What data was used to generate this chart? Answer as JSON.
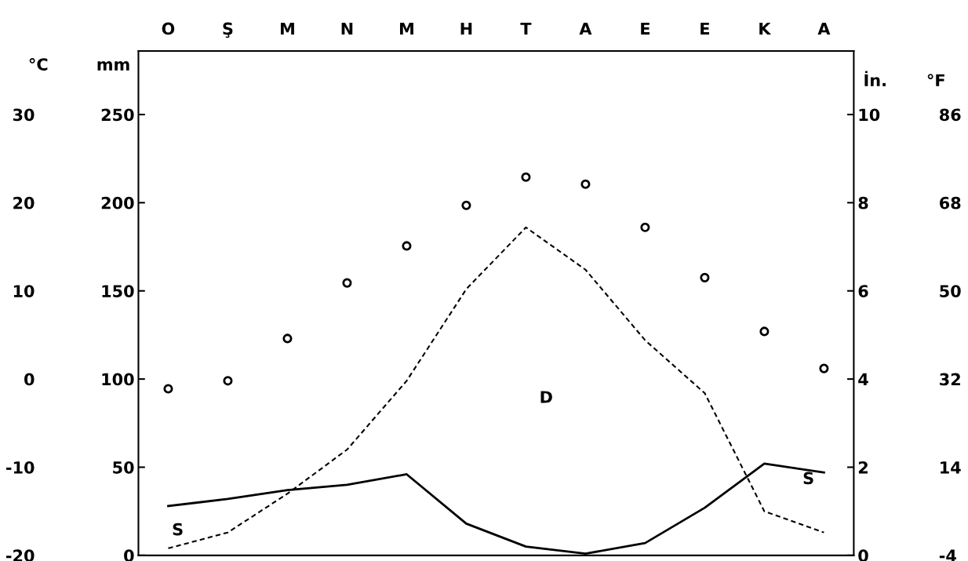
{
  "chart_data": [
    {
      "type": "scatter",
      "marker": "circle",
      "categories": [
        "O",
        "Ş",
        "M",
        "N",
        "M",
        "H",
        "T",
        "A",
        "E",
        "E",
        "K",
        "A"
      ],
      "series": [
        {
          "color": "#000000",
          "values": [
            -1.1,
            -0.2,
            4.6,
            10.9,
            15.1,
            19.7,
            22.9,
            22.1,
            17.2,
            11.5,
            5.4,
            1.2
          ]
        }
      ],
      "ylabel": "°C",
      "ylim": [
        -20,
        37.2
      ],
      "yticks": [
        -20,
        -10,
        0,
        10,
        20,
        30
      ],
      "y2label": "°F",
      "y2lim": [
        -4,
        98.96
      ],
      "y2ticks": [
        -4,
        14,
        32,
        50,
        68,
        86
      ],
      "grid": false,
      "legend": false
    },
    {
      "type": "line",
      "categories": [
        null,
        null,
        null,
        null,
        null,
        null,
        null,
        null,
        null,
        null,
        null,
        null
      ],
      "series": [
        {
          "type": "line",
          "color": "#000000",
          "line_style": "solid",
          "values": [
            28,
            32,
            37,
            40,
            46,
            18,
            5,
            1,
            7,
            27,
            52,
            47
          ]
        },
        {
          "type": "line",
          "color": "#000000",
          "line_style": "dashed",
          "values": [
            4,
            13,
            35,
            60,
            99,
            151,
            186,
            162,
            122,
            92,
            25,
            13
          ]
        }
      ],
      "ylabel": "mm",
      "ylim": [
        0,
        286
      ],
      "yticks": [
        0,
        50,
        100,
        150,
        200,
        250
      ],
      "y2label": "İn.",
      "y2lim": [
        0,
        11.44
      ],
      "y2ticks": [
        0,
        2,
        4,
        6,
        8,
        10
      ],
      "annotations": [
        "D",
        "S",
        "S"
      ],
      "grid": false,
      "legend": false
    }
  ]
}
